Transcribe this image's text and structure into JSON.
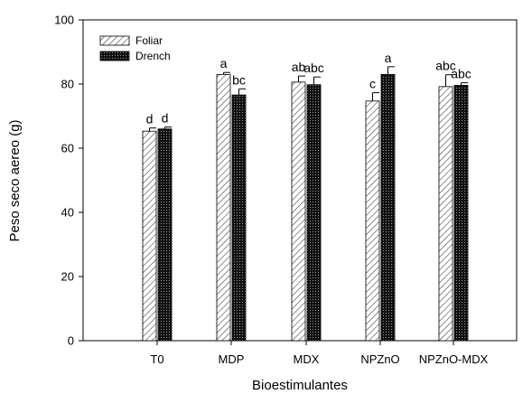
{
  "chart_data": {
    "type": "bar",
    "title": "",
    "xlabel": "Bioestimulantes",
    "ylabel": "Peso seco aereo (g)",
    "ylim": [
      0,
      100
    ],
    "yticks": [
      0,
      20,
      40,
      60,
      80,
      100
    ],
    "grid": false,
    "legend_position": "top-left",
    "categories": [
      "T0",
      "MDP",
      "MDX",
      "NPZnO",
      "NPZnO-MDX"
    ],
    "series": [
      {
        "name": "Foliar",
        "pattern": "diagonal-hatch",
        "values": [
          65.3,
          83.0,
          80.6,
          74.7,
          79.2
        ],
        "errors": [
          1.0,
          0.6,
          1.9,
          2.6,
          3.7
        ],
        "labels": [
          "d",
          "a",
          "ab",
          "c",
          "abc"
        ]
      },
      {
        "name": "Drench",
        "pattern": "dark-crosshatch",
        "values": [
          66.0,
          76.6,
          79.8,
          83.0,
          79.6
        ],
        "errors": [
          0.6,
          1.9,
          2.4,
          2.4,
          0.8
        ],
        "labels": [
          "d",
          "bc",
          "abc",
          "a",
          "abc"
        ]
      }
    ]
  }
}
